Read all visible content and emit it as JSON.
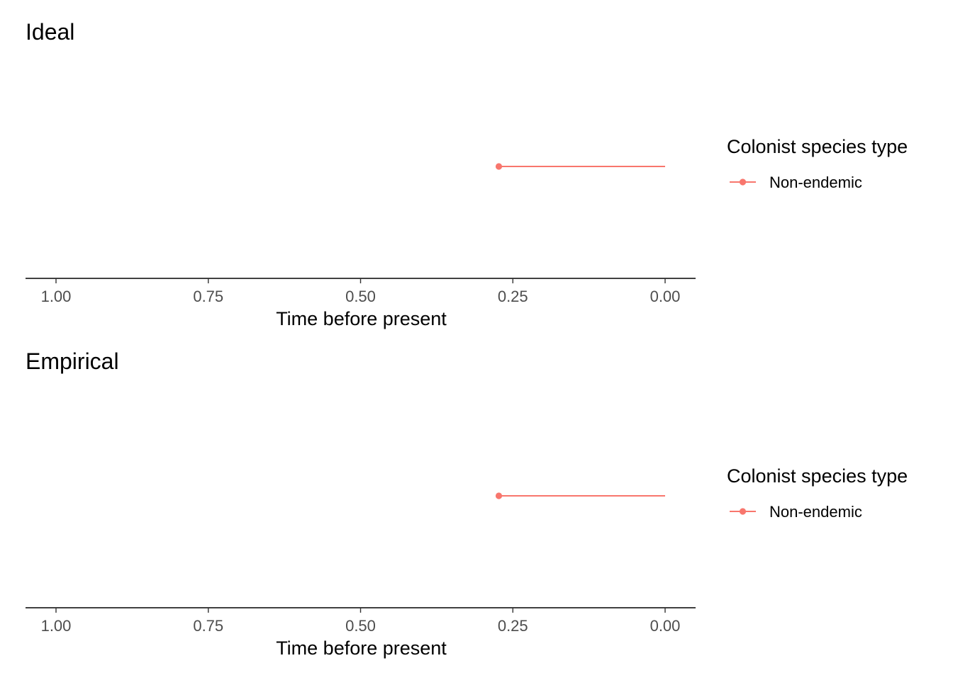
{
  "chart_data": [
    {
      "type": "line",
      "title": "Ideal",
      "xlabel": "Time before present",
      "ylabel": "",
      "x_reversed": true,
      "xlim": [
        1.0,
        0.0
      ],
      "x_ticks": [
        1.0,
        0.75,
        0.5,
        0.25,
        0.0
      ],
      "x_tick_labels": [
        "1.00",
        "0.75",
        "0.50",
        "0.25",
        "0.00"
      ],
      "y_axis_shown": false,
      "grid": false,
      "legend": {
        "title": "Colonist species type",
        "position": "right",
        "entries": [
          {
            "label": "Non-endemic",
            "color": "#F8766D"
          }
        ]
      },
      "series": [
        {
          "name": "Non-endemic",
          "color": "#F8766D",
          "segments": [
            {
              "x_start": 0.273,
              "x_end": 0.0,
              "colonisation_point": 0.273
            }
          ]
        }
      ]
    },
    {
      "type": "line",
      "title": "Empirical",
      "xlabel": "Time before present",
      "ylabel": "",
      "x_reversed": true,
      "xlim": [
        1.0,
        0.0
      ],
      "x_ticks": [
        1.0,
        0.75,
        0.5,
        0.25,
        0.0
      ],
      "x_tick_labels": [
        "1.00",
        "0.75",
        "0.50",
        "0.25",
        "0.00"
      ],
      "y_axis_shown": false,
      "grid": false,
      "legend": {
        "title": "Colonist species type",
        "position": "right",
        "entries": [
          {
            "label": "Non-endemic",
            "color": "#F8766D"
          }
        ]
      },
      "series": [
        {
          "name": "Non-endemic",
          "color": "#F8766D",
          "segments": [
            {
              "x_start": 0.273,
              "x_end": 0.0,
              "colonisation_point": 0.273
            }
          ]
        }
      ]
    }
  ]
}
